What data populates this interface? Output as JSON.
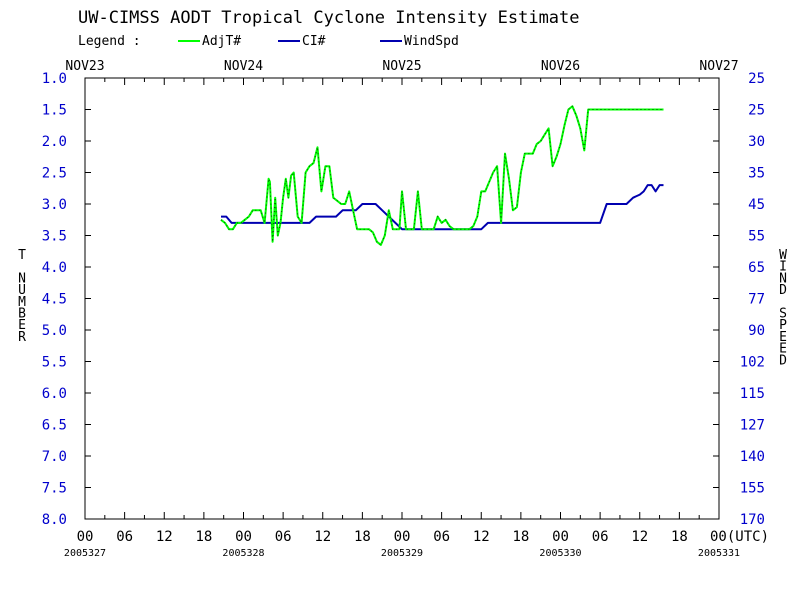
{
  "title": "UW-CIMSS AODT Tropical Cyclone Intensity Estimate",
  "legend": {
    "label": "Legend :",
    "items": [
      {
        "name": "AdjT#",
        "color": "#00ff00"
      },
      {
        "name": "CI#",
        "color": "#0000b0"
      },
      {
        "name": "WindSpd",
        "color": "#0000b0"
      }
    ]
  },
  "colors": {
    "axis_text": "#0000cc",
    "frame": "#000000",
    "adj_t": "#00ff00",
    "ci": "#0000b0"
  },
  "chart_data": {
    "type": "line",
    "title": "UW-CIMSS AODT Tropical Cyclone Intensity Estimate",
    "top_dates": [
      "NOV23",
      "NOV24",
      "NOV25",
      "NOV26",
      "NOV27"
    ],
    "left_axis": {
      "label": "T NUMBER",
      "ticks": [
        "1.0",
        "1.5",
        "2.0",
        "2.5",
        "3.0",
        "3.5",
        "4.0",
        "4.5",
        "5.0",
        "5.5",
        "6.0",
        "6.5",
        "7.0",
        "7.5",
        "8.0"
      ],
      "range": [
        1.0,
        8.0
      ],
      "inverted": true
    },
    "right_axis": {
      "label": "WIND SPEED",
      "ticks": [
        "25",
        "25",
        "30",
        "35",
        "45",
        "55",
        "65",
        "77",
        "90",
        "102",
        "115",
        "127",
        "140",
        "155",
        "170"
      ]
    },
    "x_axis": {
      "range_hours": [
        0,
        96
      ],
      "hour_ticks": [
        "00",
        "06",
        "12",
        "18",
        "00",
        "06",
        "12",
        "18",
        "00",
        "06",
        "12",
        "18",
        "00",
        "06",
        "12",
        "18",
        "00(UTC)"
      ],
      "date_ticks": [
        "2005327",
        "2005328",
        "2005329",
        "2005330",
        "2005331"
      ]
    },
    "series": [
      {
        "name": "AdjT#",
        "color": "#00ff00",
        "x": [
          20.6,
          21.2,
          21.8,
          22.4,
          23.0,
          23.6,
          24.2,
          24.8,
          25.4,
          26.0,
          26.6,
          27.2,
          27.8,
          28.0,
          28.4,
          28.8,
          29.2,
          29.6,
          30.0,
          30.4,
          30.8,
          31.2,
          31.6,
          32.2,
          32.8,
          33.4,
          34.0,
          34.6,
          35.2,
          35.8,
          36.4,
          37.0,
          37.6,
          38.2,
          38.8,
          39.4,
          40.0,
          40.6,
          41.2,
          41.8,
          42.4,
          43.0,
          43.6,
          44.2,
          44.8,
          45.4,
          46.0,
          46.6,
          47.2,
          47.6,
          48.0,
          48.6,
          49.2,
          49.8,
          50.4,
          51.0,
          51.6,
          52.2,
          52.8,
          53.4,
          54.0,
          54.6,
          55.2,
          55.8,
          56.4,
          57.0,
          57.6,
          58.2,
          58.8,
          59.4,
          60.0,
          60.6,
          61.2,
          61.8,
          62.4,
          63.0,
          63.6,
          64.2,
          64.8,
          65.4,
          66.0,
          66.6,
          67.2,
          67.8,
          68.4,
          69.0,
          69.6,
          70.2,
          70.8,
          71.4,
          72.0,
          72.6,
          73.2,
          73.8,
          74.4,
          75.0,
          75.6,
          76.2,
          76.8,
          77.4,
          78.0,
          78.6,
          79.2,
          79.8,
          80.4,
          81.0,
          81.6,
          82.2,
          82.8,
          83.4,
          84.0,
          84.6,
          85.2,
          85.8,
          86.4,
          87.0,
          87.6
        ],
        "y": [
          3.25,
          3.3,
          3.4,
          3.4,
          3.3,
          3.3,
          3.25,
          3.2,
          3.1,
          3.1,
          3.1,
          3.3,
          2.6,
          2.65,
          3.6,
          2.9,
          3.5,
          3.3,
          2.9,
          2.6,
          2.9,
          2.55,
          2.5,
          3.2,
          3.3,
          2.5,
          2.4,
          2.35,
          2.1,
          2.8,
          2.4,
          2.4,
          2.9,
          2.95,
          3.0,
          3.0,
          2.8,
          3.1,
          3.4,
          3.4,
          3.4,
          3.4,
          3.45,
          3.6,
          3.65,
          3.5,
          3.1,
          3.4,
          3.4,
          3.4,
          2.8,
          3.4,
          3.4,
          3.4,
          2.8,
          3.4,
          3.4,
          3.4,
          3.4,
          3.2,
          3.3,
          3.25,
          3.35,
          3.4,
          3.4,
          3.4,
          3.4,
          3.4,
          3.35,
          3.2,
          2.8,
          2.8,
          2.65,
          2.5,
          2.4,
          3.3,
          2.2,
          2.6,
          3.1,
          3.05,
          2.5,
          2.2,
          2.2,
          2.2,
          2.05,
          2.0,
          1.9,
          1.8,
          2.4,
          2.25,
          2.05,
          1.75,
          1.5,
          1.45,
          1.6,
          1.8,
          2.15,
          1.5,
          1.5,
          1.5,
          1.5,
          1.5,
          1.5,
          1.5,
          1.5,
          1.5,
          1.5,
          1.5,
          1.5,
          1.5,
          1.5,
          1.5,
          1.5,
          1.5,
          1.5,
          1.5,
          1.5
        ]
      },
      {
        "name": "CI#",
        "color": "#0000b0",
        "x": [
          20.6,
          21.4,
          22.2,
          23.0,
          24.0,
          25.0,
          26.0,
          27.0,
          28.0,
          29.0,
          30.0,
          31.0,
          32.0,
          33.0,
          34.0,
          35.0,
          36.0,
          37.0,
          38.0,
          39.0,
          40.0,
          41.0,
          42.0,
          43.0,
          44.0,
          45.0,
          46.0,
          47.0,
          48.0,
          49.0,
          50.0,
          51.0,
          52.0,
          53.0,
          54.0,
          55.0,
          56.0,
          57.0,
          58.0,
          59.0,
          60.0,
          61.0,
          62.0,
          63.0,
          64.0,
          65.0,
          66.0,
          67.0,
          68.0,
          69.0,
          70.0,
          71.0,
          72.0,
          73.0,
          74.0,
          75.0,
          76.0,
          77.0,
          78.0,
          79.0,
          80.0,
          81.0,
          82.0,
          83.0,
          84.0,
          84.6,
          85.2,
          85.8,
          86.4,
          87.0,
          87.6
        ],
        "y": [
          3.2,
          3.2,
          3.3,
          3.3,
          3.3,
          3.3,
          3.3,
          3.3,
          3.3,
          3.3,
          3.3,
          3.3,
          3.3,
          3.3,
          3.3,
          3.2,
          3.2,
          3.2,
          3.2,
          3.1,
          3.1,
          3.1,
          3.0,
          3.0,
          3.0,
          3.1,
          3.2,
          3.3,
          3.4,
          3.4,
          3.4,
          3.4,
          3.4,
          3.4,
          3.4,
          3.4,
          3.4,
          3.4,
          3.4,
          3.4,
          3.4,
          3.3,
          3.3,
          3.3,
          3.3,
          3.3,
          3.3,
          3.3,
          3.3,
          3.3,
          3.3,
          3.3,
          3.3,
          3.3,
          3.3,
          3.3,
          3.3,
          3.3,
          3.3,
          3.0,
          3.0,
          3.0,
          3.0,
          2.9,
          2.85,
          2.8,
          2.7,
          2.7,
          2.8,
          2.7,
          2.7
        ]
      }
    ],
    "grid": false,
    "legend_position": "top"
  }
}
